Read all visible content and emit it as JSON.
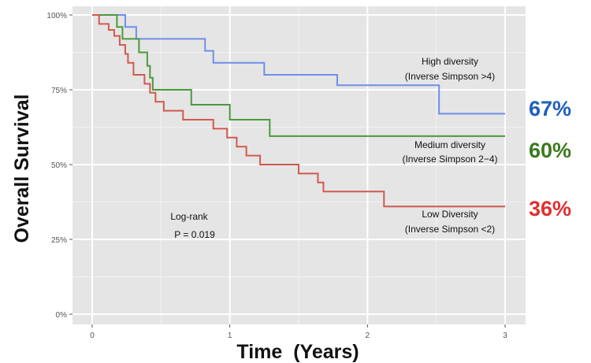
{
  "chart_data": {
    "type": "line",
    "subtype": "kaplan-meier step curves",
    "xlabel": "Time  (Years)",
    "ylabel": "Overall Survival",
    "xlim": [
      0,
      3
    ],
    "ylim": [
      0,
      1
    ],
    "x_ticks": [
      0,
      1,
      2,
      3
    ],
    "x_tick_labels": [
      "0",
      "1",
      "2",
      "3"
    ],
    "y_ticks": [
      0,
      0.25,
      0.5,
      0.75,
      1.0
    ],
    "y_tick_labels": [
      "0%",
      "25%",
      "50%",
      "75%",
      "100%"
    ],
    "grid": true,
    "annotation": {
      "line1": "Log-rank",
      "line2": "P = 0.019"
    },
    "series": [
      {
        "name": "High diversity",
        "name_line2": "(Inverse Simpson >4)",
        "color": "#6f8ee8",
        "end_label": "67%",
        "end_label_color": "#1f5fbf",
        "steps": [
          [
            0,
            1.0
          ],
          [
            0.24,
            0.96
          ],
          [
            0.32,
            0.92
          ],
          [
            0.82,
            0.88
          ],
          [
            0.88,
            0.84
          ],
          [
            1.25,
            0.8
          ],
          [
            1.78,
            0.765
          ],
          [
            2.52,
            0.67
          ],
          [
            3.0,
            0.67
          ]
        ]
      },
      {
        "name": "Medium diversity",
        "name_line2": "(Inverse Simpson 2−4)",
        "color": "#4a9a3a",
        "end_label": "60%",
        "end_label_color": "#3a7a1e",
        "steps": [
          [
            0,
            1.0
          ],
          [
            0.18,
            0.96
          ],
          [
            0.22,
            0.92
          ],
          [
            0.34,
            0.875
          ],
          [
            0.4,
            0.83
          ],
          [
            0.42,
            0.79
          ],
          [
            0.44,
            0.75
          ],
          [
            0.72,
            0.7
          ],
          [
            1.0,
            0.65
          ],
          [
            1.29,
            0.595
          ],
          [
            3.0,
            0.595
          ]
        ]
      },
      {
        "name": "Low Diversity",
        "name_line2": "(Inverse Simpson <2)",
        "color": "#d05a4f",
        "end_label": "36%",
        "end_label_color": "#e03030",
        "steps": [
          [
            0,
            1.0
          ],
          [
            0.05,
            0.97
          ],
          [
            0.12,
            0.95
          ],
          [
            0.16,
            0.93
          ],
          [
            0.2,
            0.9
          ],
          [
            0.24,
            0.87
          ],
          [
            0.26,
            0.84
          ],
          [
            0.3,
            0.8
          ],
          [
            0.38,
            0.77
          ],
          [
            0.42,
            0.74
          ],
          [
            0.46,
            0.71
          ],
          [
            0.52,
            0.68
          ],
          [
            0.66,
            0.65
          ],
          [
            0.88,
            0.62
          ],
          [
            0.98,
            0.59
          ],
          [
            1.05,
            0.56
          ],
          [
            1.12,
            0.53
          ],
          [
            1.22,
            0.5
          ],
          [
            1.5,
            0.47
          ],
          [
            1.64,
            0.44
          ],
          [
            1.68,
            0.41
          ],
          [
            2.12,
            0.36
          ],
          [
            3.0,
            0.36
          ]
        ]
      }
    ]
  }
}
